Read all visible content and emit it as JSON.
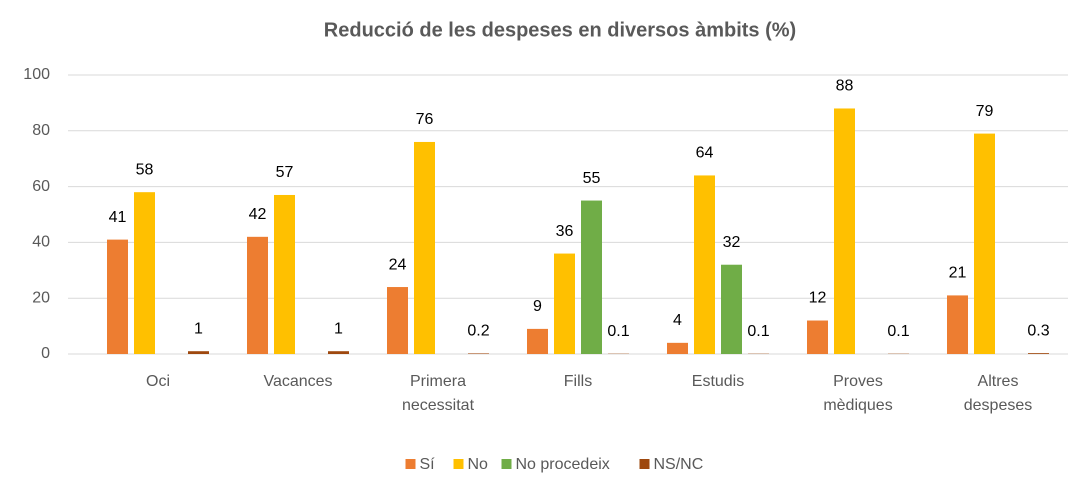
{
  "chart_data": {
    "type": "bar",
    "title": "Reducció de les despeses en diversos àmbits (%)",
    "categories": [
      "Oci",
      "Vacances",
      "Primera necessitat",
      "Fills",
      "Estudis",
      "Proves mèdiques",
      "Altres despeses"
    ],
    "series": [
      {
        "name": "Sí",
        "color": "#ed7d31",
        "values": [
          41,
          42,
          24,
          9,
          4,
          12,
          21
        ]
      },
      {
        "name": "No",
        "color": "#ffc000",
        "values": [
          58,
          57,
          76,
          36,
          64,
          88,
          79
        ]
      },
      {
        "name": "No procedeix",
        "color": "#70ad47",
        "values": [
          null,
          null,
          null,
          55,
          32,
          null,
          null
        ]
      },
      {
        "name": "NS/NC",
        "color": "#9e480e",
        "values": [
          1,
          1,
          0.2,
          0.1,
          0.1,
          0.1,
          0.3
        ]
      }
    ],
    "ylim": [
      0,
      100
    ],
    "yticks": [
      0,
      20,
      40,
      60,
      80,
      100
    ],
    "grid": true,
    "legend": "bottom"
  }
}
